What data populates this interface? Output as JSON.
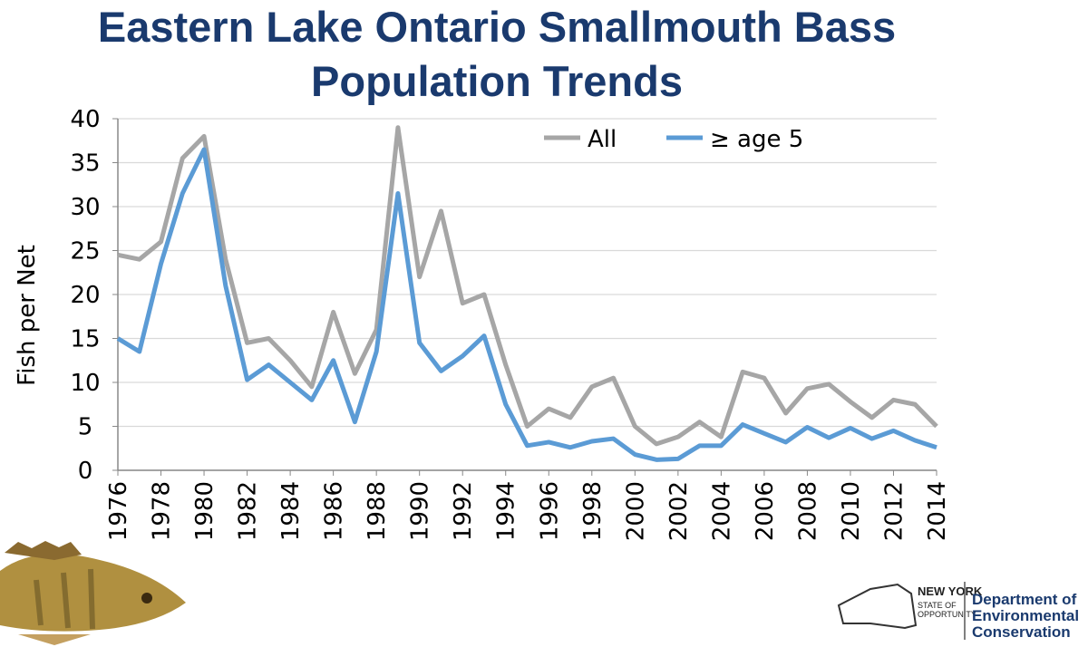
{
  "chart_data": {
    "type": "line",
    "title": "Eastern Lake Ontario Smallmouth Bass",
    "subtitle": "Population Trends",
    "ylabel": "Fish per Net",
    "x": [
      1976,
      1977,
      1978,
      1979,
      1980,
      1981,
      1982,
      1983,
      1984,
      1985,
      1986,
      1987,
      1988,
      1989,
      1990,
      1991,
      1992,
      1993,
      1994,
      1995,
      1996,
      1997,
      1998,
      1999,
      2000,
      2001,
      2002,
      2003,
      2004,
      2005,
      2006,
      2007,
      2008,
      2009,
      2010,
      2011,
      2012,
      2013,
      2014
    ],
    "xlim": [
      1976,
      2014
    ],
    "xticks": [
      1976,
      1978,
      1980,
      1982,
      1984,
      1986,
      1988,
      1990,
      1992,
      1994,
      1996,
      1998,
      2000,
      2002,
      2004,
      2006,
      2008,
      2010,
      2012,
      2014
    ],
    "ylim": [
      0,
      40
    ],
    "yticks": [
      0,
      5,
      10,
      15,
      20,
      25,
      30,
      35,
      40
    ],
    "grid": true,
    "legend": "top-right",
    "series": [
      {
        "name": "All",
        "color": "#a6a6a6",
        "values": [
          24.5,
          24,
          26,
          35.5,
          38,
          24,
          14.5,
          15,
          12.5,
          9.5,
          18,
          11,
          16,
          39,
          22,
          29.5,
          19,
          20,
          12,
          5,
          7,
          6,
          9.5,
          10.5,
          5,
          3,
          3.8,
          5.5,
          3.8,
          11.2,
          10.5,
          6.5,
          9.3,
          9.8,
          7.8,
          6,
          8,
          7.5,
          5
        ]
      },
      {
        "name": "≥ age 5",
        "color": "#5b9bd5",
        "values": [
          15,
          13.5,
          23.5,
          31.5,
          36.5,
          21,
          10.3,
          12,
          10,
          8,
          12.5,
          5.5,
          13.5,
          31.5,
          14.5,
          11.3,
          13,
          15.3,
          7.5,
          2.8,
          3.2,
          2.6,
          3.3,
          3.6,
          1.8,
          1.2,
          1.3,
          2.8,
          2.8,
          5.2,
          4.2,
          3.2,
          4.9,
          3.7,
          4.8,
          3.6,
          4.5,
          3.4,
          2.6
        ]
      }
    ]
  },
  "logo": {
    "state": "NEW YORK",
    "tagline_1": "STATE OF",
    "tagline_2": "OPPORTUNITY",
    "dept_1": "Department of",
    "dept_2": "Environmental",
    "dept_3": "Conservation"
  }
}
